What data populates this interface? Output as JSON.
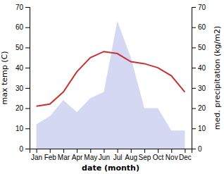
{
  "chart_data": {
    "type": "line",
    "categories": [
      "Jan",
      "Feb",
      "Mar",
      "Apr",
      "May",
      "Jun",
      "Jul",
      "Aug",
      "Sep",
      "Oct",
      "Nov",
      "Dec"
    ],
    "series": [
      {
        "type": "area",
        "axis": "y2",
        "color": "#b0b8e8",
        "values": [
          12,
          16,
          24,
          18,
          25,
          28,
          63,
          45,
          20,
          20,
          9,
          9
        ]
      },
      {
        "type": "line",
        "color": "#c83232",
        "values": [
          21,
          22,
          28,
          38,
          45,
          48,
          47,
          43,
          42,
          40,
          36,
          28
        ]
      }
    ],
    "xlabel": "date (month)",
    "ylabel": "max temp (C)",
    "y2label": "med. precipitation (kg/m2)",
    "ylim": [
      0,
      70
    ],
    "yticks": [
      0,
      10,
      20,
      30,
      40,
      50,
      60,
      70
    ],
    "y2lim": [
      0,
      70
    ],
    "y2ticks": [
      0,
      10,
      20,
      30,
      40,
      50,
      60,
      70
    ],
    "grid": false
  }
}
